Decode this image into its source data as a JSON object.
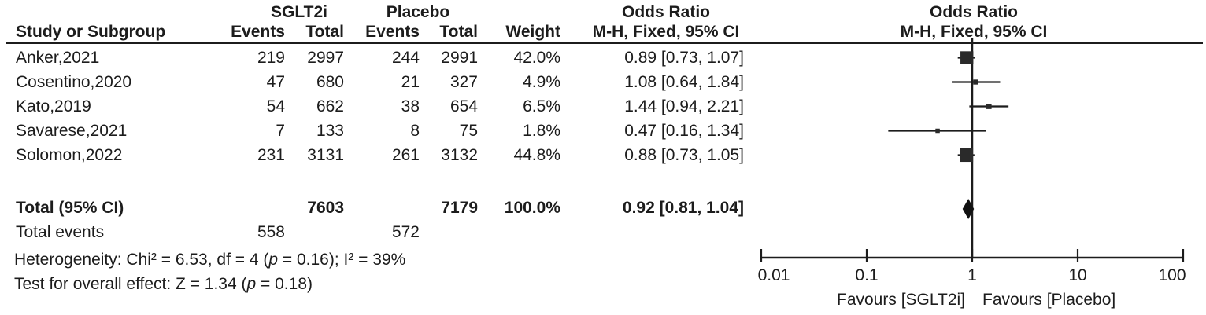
{
  "figure": {
    "background": "#ffffff",
    "text_color": "#1c1c1c",
    "marker_color": "#2a2a2a",
    "line_color": "#1c1c1c"
  },
  "table": {
    "group_headers": {
      "treatment": "SGLT2i",
      "control": "Placebo",
      "or_left": "Odds Ratio",
      "or_right": "Odds Ratio"
    },
    "col_headers": {
      "study": "Study or Subgroup",
      "events1": "Events",
      "total1": "Total",
      "events2": "Events",
      "total2": "Total",
      "weight": "Weight",
      "mh_left": "M-H, Fixed, 95% CI",
      "mh_right": "M-H, Fixed, 95% CI"
    },
    "rows": [
      {
        "study": "Anker,2021",
        "events1": "219",
        "total1": "2997",
        "events2": "244",
        "total2": "2991",
        "weight": "42.0%",
        "or_text": "0.89 [0.73, 1.07]"
      },
      {
        "study": "Cosentino,2020",
        "events1": "47",
        "total1": "680",
        "events2": "21",
        "total2": "327",
        "weight": "4.9%",
        "or_text": "1.08 [0.64, 1.84]"
      },
      {
        "study": "Kato,2019",
        "events1": "54",
        "total1": "662",
        "events2": "38",
        "total2": "654",
        "weight": "6.5%",
        "or_text": "1.44 [0.94, 2.21]"
      },
      {
        "study": "Savarese,2021",
        "events1": "7",
        "total1": "133",
        "events2": "8",
        "total2": "75",
        "weight": "1.8%",
        "or_text": "0.47 [0.16, 1.34]"
      },
      {
        "study": "Solomon,2022",
        "events1": "231",
        "total1": "3131",
        "events2": "261",
        "total2": "3132",
        "weight": "44.8%",
        "or_text": "0.88 [0.73, 1.05]"
      }
    ],
    "total_row": {
      "label": "Total (95% CI)",
      "total1": "7603",
      "total2": "7179",
      "weight": "100.0%",
      "or_text": "0.92 [0.81, 1.04]"
    },
    "total_events": {
      "label": "Total events",
      "events1": "558",
      "events2": "572"
    },
    "heterogeneity": {
      "pre": "Heterogeneity: Chi² = 6.53, df = 4 (",
      "p": "p",
      "post": " = 0.16); I² = 39%"
    },
    "overall": {
      "pre": "Test for overall effect: Z = 1.34 (",
      "p": "p",
      "post": " = 0.18)"
    }
  },
  "chart_data": {
    "type": "forest",
    "effect_measure": "Odds Ratio, M-H, Fixed, 95% CI",
    "x_scale": "log10",
    "xlim": [
      0.01,
      100
    ],
    "axis_ticks": [
      0.01,
      0.1,
      1,
      10,
      100
    ],
    "axis_tick_labels": [
      "0.01",
      "0.1",
      "1",
      "10",
      "100"
    ],
    "favours_left": "Favours [SGLT2i]",
    "favours_right": "Favours [Placebo]",
    "studies": [
      {
        "name": "Anker,2021",
        "or": 0.89,
        "ci_low": 0.73,
        "ci_high": 1.07,
        "weight_pct": 42.0
      },
      {
        "name": "Cosentino,2020",
        "or": 1.08,
        "ci_low": 0.64,
        "ci_high": 1.84,
        "weight_pct": 4.9
      },
      {
        "name": "Kato,2019",
        "or": 1.44,
        "ci_low": 0.94,
        "ci_high": 2.21,
        "weight_pct": 6.5
      },
      {
        "name": "Savarese,2021",
        "or": 0.47,
        "ci_low": 0.16,
        "ci_high": 1.34,
        "weight_pct": 1.8
      },
      {
        "name": "Solomon,2022",
        "or": 0.88,
        "ci_low": 0.73,
        "ci_high": 1.05,
        "weight_pct": 44.8
      }
    ],
    "total": {
      "or": 0.92,
      "ci_low": 0.81,
      "ci_high": 1.04
    }
  }
}
